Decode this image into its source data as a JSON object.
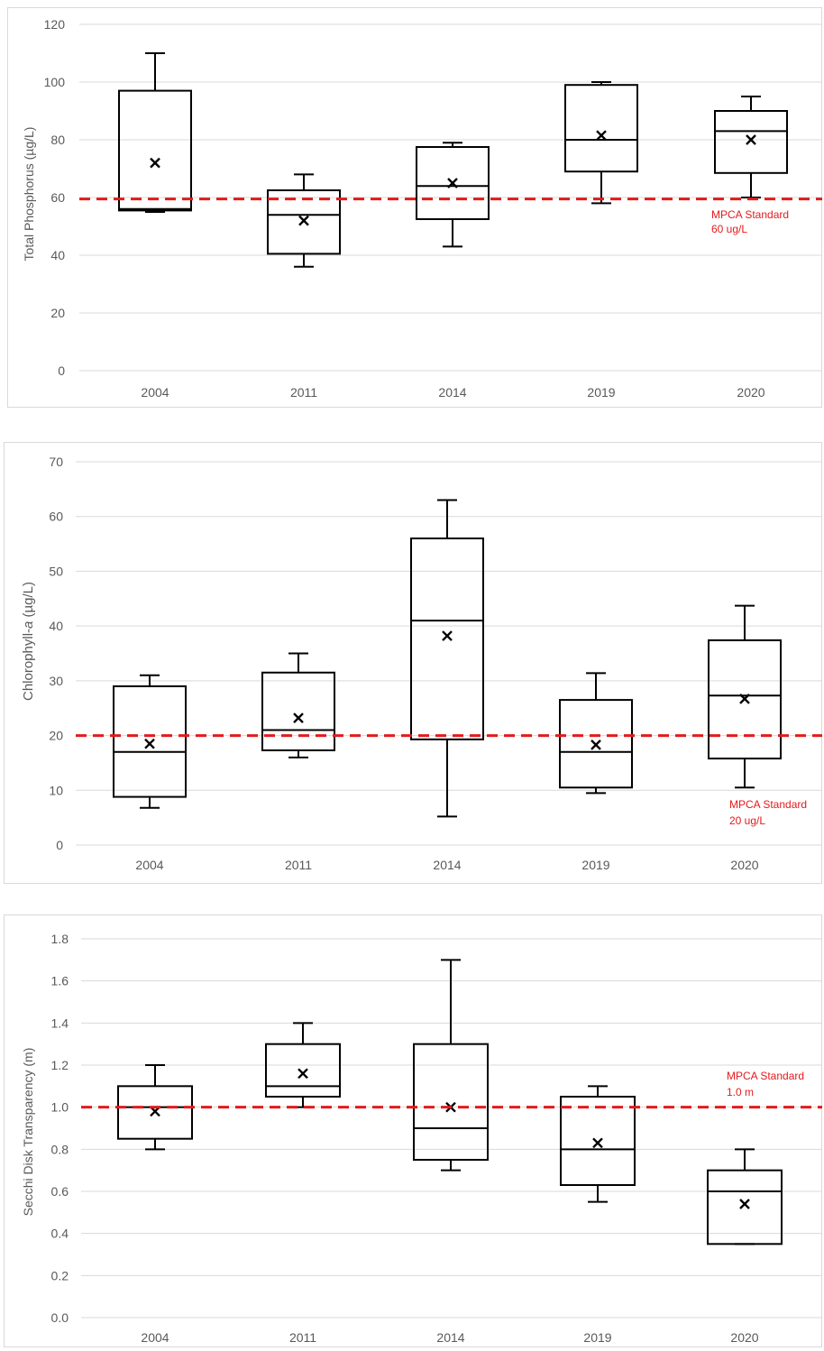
{
  "chart_data": [
    {
      "type": "box",
      "title": "",
      "ylabel": "Total Phosphorus (µg/L)",
      "ylim": [
        0,
        120
      ],
      "yticks": [
        "0",
        "20",
        "40",
        "60",
        "80",
        "100",
        "120"
      ],
      "categories": [
        "2004",
        "2011",
        "2014",
        "2019",
        "2020"
      ],
      "boxes": [
        {
          "min": 55,
          "q1": 55.5,
          "median": 56,
          "q3": 97,
          "max": 110,
          "mean": 72
        },
        {
          "min": 36,
          "q1": 40.5,
          "median": 54,
          "q3": 62.5,
          "max": 68,
          "mean": 52
        },
        {
          "min": 43,
          "q1": 52.5,
          "median": 64,
          "q3": 77.5,
          "max": 79,
          "mean": 65
        },
        {
          "min": 58,
          "q1": 69,
          "median": 80,
          "q3": 99,
          "max": 100,
          "mean": 81.5
        },
        {
          "min": 60,
          "q1": 68.5,
          "median": 83,
          "q3": 90,
          "max": 95,
          "mean": 80
        }
      ],
      "standard": {
        "value": 59.5,
        "label_line1": "MPCA Standard",
        "label_line2": "60 ug/L",
        "color": "#e41a1c"
      },
      "grid": true
    },
    {
      "type": "box",
      "title": "",
      "ylabel_prefix": "Chlorophyll-",
      "ylabel_italic": "a",
      "ylabel_suffix": " (µg/L)",
      "ylim": [
        0,
        70
      ],
      "yticks": [
        "0",
        "10",
        "20",
        "30",
        "40",
        "50",
        "60",
        "70"
      ],
      "categories": [
        "2004",
        "2011",
        "2014",
        "2019",
        "2020"
      ],
      "boxes": [
        {
          "min": 6.8,
          "q1": 8.8,
          "median": 17,
          "q3": 29,
          "max": 31,
          "mean": 18.5
        },
        {
          "min": 16,
          "q1": 17.3,
          "median": 21,
          "q3": 31.5,
          "max": 35,
          "mean": 23.2
        },
        {
          "min": 5.2,
          "q1": 19.3,
          "median": 41,
          "q3": 56,
          "max": 63,
          "mean": 38.2
        },
        {
          "min": 9.5,
          "q1": 10.5,
          "median": 17,
          "q3": 26.5,
          "max": 31.4,
          "mean": 18.3
        },
        {
          "min": 10.5,
          "q1": 15.8,
          "median": 27.3,
          "q3": 37.4,
          "max": 43.7,
          "mean": 26.7
        }
      ],
      "standard": {
        "value": 20,
        "label_line1": "MPCA Standard",
        "label_line2": "20 ug/L",
        "color": "#e41a1c"
      },
      "grid": true
    },
    {
      "type": "box",
      "title": "",
      "ylabel": "Secchi Disk Transparency (m)",
      "ylim": [
        0,
        1.8
      ],
      "yticks": [
        "0.0",
        "0.2",
        "0.4",
        "0.6",
        "0.8",
        "1.0",
        "1.2",
        "1.4",
        "1.6",
        "1.8"
      ],
      "categories": [
        "2004",
        "2011",
        "2014",
        "2019",
        "2020"
      ],
      "boxes": [
        {
          "min": 0.8,
          "q1": 0.85,
          "median": 1.0,
          "q3": 1.1,
          "max": 1.2,
          "mean": 0.98
        },
        {
          "min": 1.0,
          "q1": 1.05,
          "median": 1.1,
          "q3": 1.3,
          "max": 1.4,
          "mean": 1.16
        },
        {
          "min": 0.7,
          "q1": 0.75,
          "median": 0.9,
          "q3": 1.3,
          "max": 1.7,
          "mean": 1.0
        },
        {
          "min": 0.55,
          "q1": 0.63,
          "median": 0.8,
          "q3": 1.05,
          "max": 1.1,
          "mean": 0.83
        },
        {
          "min": 0.35,
          "q1": 0.35,
          "median": 0.6,
          "q3": 0.7,
          "max": 0.8,
          "mean": 0.54
        }
      ],
      "standard": {
        "value": 1.0,
        "label_line1": "MPCA Standard",
        "label_line2": "1.0 m",
        "color": "#e41a1c"
      },
      "grid": true
    }
  ]
}
